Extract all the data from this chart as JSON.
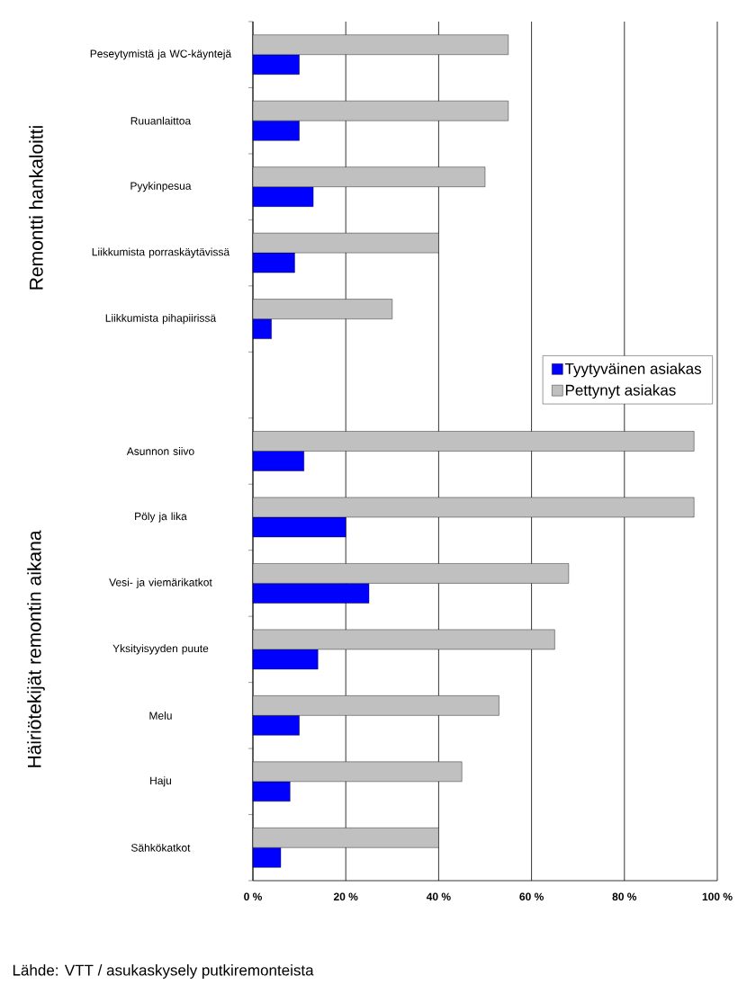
{
  "chart_data": {
    "type": "bar",
    "orientation": "horizontal",
    "categories": [
      "Peseytymistä ja WC-käyntejä",
      "Ruuanlaittoa",
      "Pyykinpesua",
      "Liikkumista porraskäytävissä",
      "Liikkumista pihapiirissä",
      null,
      "Asunnon siivo",
      "Pöly ja lika",
      "Vesi- ja viemärikatkot",
      "Yksityisyyden puute",
      "Melu",
      "Haju",
      "Sähkökatkot"
    ],
    "series": [
      {
        "name": "Tyytyväinen asiakas",
        "color": "#0000ff",
        "values": [
          10,
          10,
          13,
          9,
          4,
          null,
          11,
          20,
          25,
          14,
          10,
          8,
          6
        ]
      },
      {
        "name": "Pettynyt asiakas",
        "color": "#c0c0c0",
        "values": [
          55,
          55,
          50,
          40,
          30,
          null,
          95,
          95,
          68,
          65,
          53,
          45,
          40
        ]
      }
    ],
    "xlim": [
      0,
      100
    ],
    "xticks": [
      {
        "value": 0,
        "label": "0 %"
      },
      {
        "value": 20,
        "label": "20 %"
      },
      {
        "value": 40,
        "label": "40 %"
      },
      {
        "value": 60,
        "label": "60 %"
      },
      {
        "value": 80,
        "label": "80 %"
      },
      {
        "value": 100,
        "label": "100 %"
      }
    ],
    "grid": "x",
    "legend": "right",
    "annotations": [
      "Remontti hankaloitti",
      "Häiriötekijät remontin aikana",
      "Lähde: VTT / asukaskysely putkiremonteista"
    ]
  }
}
